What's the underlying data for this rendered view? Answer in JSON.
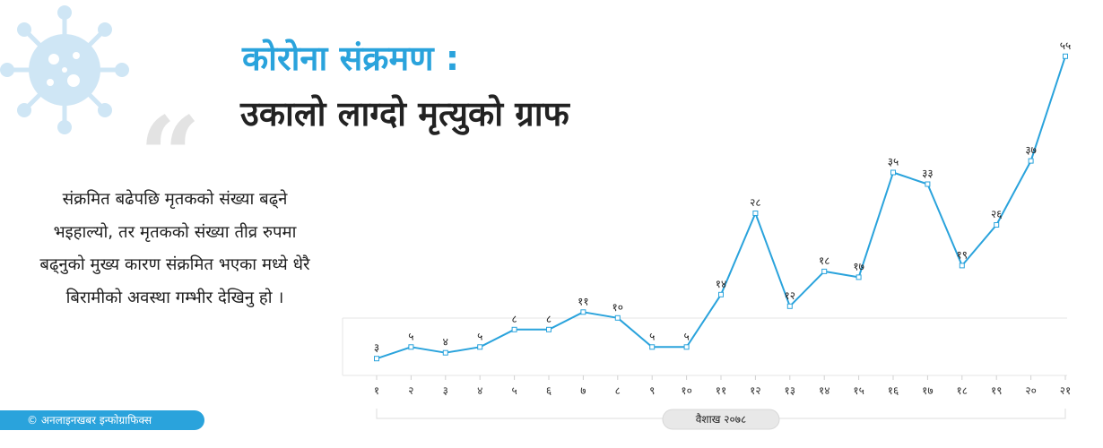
{
  "header": {
    "title_line1": "कोरोना संक्रमण  :",
    "title_line2": "उकालो लाग्दो मृत्युको ग्राफ"
  },
  "quote_glyph": "“",
  "description": "संक्रमित बढेपछि मृतकको संख्या बढ्ने भइहाल्यो, तर मृतकको संख्या तीव्र रुपमा बढ्नुको मुख्य कारण संक्रमित भएका मध्ये धेरै बिरामीको अवस्था गम्भीर देखिनु हो ।",
  "credit": "© अनलाइनखबर इन्फोग्राफिक्स",
  "colors": {
    "accent": "#2aa3dc",
    "virus": "#cfe6f5",
    "quote": "#e3e3e3",
    "grid": "#e6e6e6",
    "title_dark": "#222222"
  },
  "chart_data": {
    "type": "line",
    "title": "उकालो लाग्दो मृत्युको ग्राफ",
    "xlabel": "वैशाख २०७८",
    "ylabel": "",
    "categories": [
      "१",
      "२",
      "३",
      "४",
      "५",
      "६",
      "७",
      "८",
      "९",
      "१०",
      "११",
      "१२",
      "१३",
      "१४",
      "१५",
      "१६",
      "१७",
      "१८",
      "१९",
      "२०",
      "२१"
    ],
    "series": [
      {
        "values": [
          3,
          5,
          4,
          5,
          8,
          8,
          11,
          10,
          5,
          5,
          14,
          28,
          12,
          18,
          17,
          35,
          33,
          19,
          26,
          37,
          55
        ],
        "labels": [
          "३",
          "५",
          "४",
          "५",
          "८",
          "८",
          "११",
          "१०",
          "५",
          "५",
          "१४",
          "२८",
          "१२",
          "१८",
          "१७",
          "३५",
          "३३",
          "१९",
          "२६",
          "३७",
          "५५"
        ]
      }
    ],
    "ylim": [
      0,
      55
    ],
    "grid": false,
    "legend": "none"
  }
}
